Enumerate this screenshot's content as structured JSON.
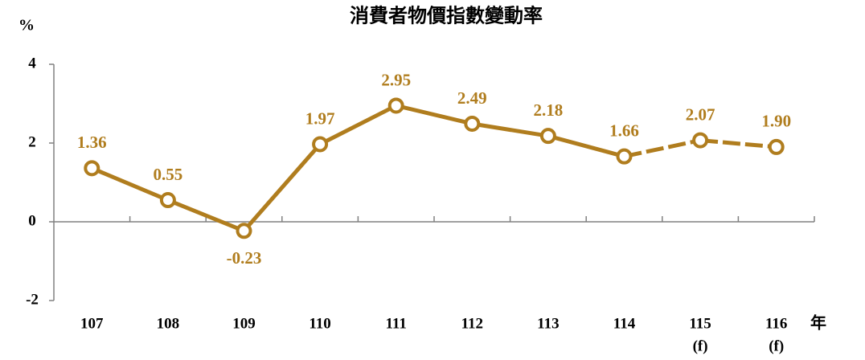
{
  "chart_data": {
    "type": "line",
    "title": "消費者物價指數變動率",
    "y_label": "%",
    "x_label": "年",
    "categories": [
      "107",
      "108",
      "109",
      "110",
      "111",
      "112",
      "113",
      "114",
      "115",
      "116"
    ],
    "category_sublabels": [
      null,
      null,
      null,
      null,
      null,
      null,
      null,
      null,
      "(f)",
      "(f)"
    ],
    "values": [
      1.36,
      0.55,
      -0.23,
      1.97,
      2.95,
      2.49,
      2.18,
      1.66,
      2.07,
      1.9
    ],
    "value_labels": [
      "1.36",
      "0.55",
      "-0.23",
      "1.97",
      "2.95",
      "2.49",
      "2.18",
      "1.66",
      "2.07",
      "1.90"
    ],
    "color": "#b07d1e",
    "ylim": [
      -2,
      4
    ],
    "yticks": [
      -2,
      0,
      2,
      4
    ],
    "grid": false
  }
}
